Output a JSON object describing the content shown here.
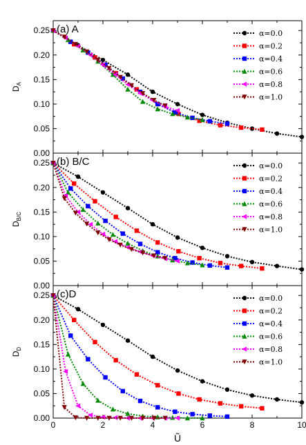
{
  "chart_data": [
    {
      "type": "line",
      "panel_title": "(a) A",
      "ylabel_main": "D",
      "ylabel_sub": "A",
      "xlabel": "Ũ",
      "xlim": [
        0,
        10
      ],
      "ylim": [
        0,
        0.27
      ],
      "xticks": [
        "0",
        "2",
        "4",
        "6",
        "8",
        "10"
      ],
      "yticks": [
        "0.00",
        "0.05",
        "0.10",
        "0.15",
        "0.20",
        "0.25"
      ],
      "legend": "top-right",
      "series": [
        {
          "name": "α=0.0",
          "color": "#000000",
          "marker": "circle",
          "x": [
            0,
            1,
            2,
            3,
            4,
            5,
            6,
            7,
            8,
            9,
            10
          ],
          "y": [
            0.25,
            0.22,
            0.19,
            0.16,
            0.125,
            0.1,
            0.078,
            0.062,
            0.05,
            0.04,
            0.033
          ]
        },
        {
          "name": "α=0.2",
          "color": "#ff0000",
          "marker": "square",
          "x": [
            0,
            0.84,
            1.68,
            2.52,
            3.36,
            4.2,
            5.04,
            5.88,
            6.72,
            7.56,
            8.4
          ],
          "y": [
            0.25,
            0.222,
            0.195,
            0.163,
            0.13,
            0.1,
            0.08,
            0.066,
            0.057,
            0.052,
            0.048
          ]
        },
        {
          "name": "α=0.4",
          "color": "#0000ff",
          "marker": "square",
          "x": [
            0,
            0.7,
            1.4,
            2.1,
            2.8,
            3.5,
            4.2,
            4.9,
            5.6,
            6.3,
            7.0
          ],
          "y": [
            0.25,
            0.227,
            0.205,
            0.18,
            0.152,
            0.125,
            0.1,
            0.083,
            0.072,
            0.065,
            0.06
          ]
        },
        {
          "name": "α=0.6",
          "color": "#008800",
          "marker": "triangle-up",
          "x": [
            0,
            0.6,
            1.2,
            1.8,
            2.4,
            3.0,
            3.6,
            4.2,
            4.8,
            5.4,
            6.0
          ],
          "y": [
            0.25,
            0.231,
            0.21,
            0.187,
            0.16,
            0.13,
            0.105,
            0.09,
            0.08,
            0.073,
            0.068
          ]
        },
        {
          "name": "α=0.8",
          "color": "#ff00ff",
          "marker": "triangle-left",
          "x": [
            0,
            0.5,
            1.0,
            1.5,
            2.0,
            2.5,
            3.0,
            3.5,
            4.0,
            4.5,
            5.0
          ],
          "y": [
            0.25,
            0.235,
            0.218,
            0.2,
            0.18,
            0.16,
            0.14,
            0.122,
            0.108,
            0.095,
            0.087
          ]
        },
        {
          "name": "α=1.0",
          "color": "#800000",
          "marker": "triangle-down",
          "x": [
            0,
            0.45,
            0.9,
            1.35,
            1.8,
            2.25,
            2.7,
            3.15,
            3.6,
            4.05,
            4.5
          ],
          "y": [
            0.25,
            0.237,
            0.222,
            0.207,
            0.19,
            0.173,
            0.155,
            0.138,
            0.122,
            0.108,
            0.097
          ]
        }
      ]
    },
    {
      "type": "line",
      "panel_title": "(b) B/C",
      "ylabel_main": "D",
      "ylabel_sub": "B/C",
      "xlabel": "Ũ",
      "xlim": [
        0,
        10
      ],
      "ylim": [
        0,
        0.27
      ],
      "xticks": [
        "0",
        "2",
        "4",
        "6",
        "8",
        "10"
      ],
      "yticks": [
        "0.00",
        "0.05",
        "0.10",
        "0.15",
        "0.20",
        "0.25"
      ],
      "legend": "top-right",
      "series": [
        {
          "name": "α=0.0",
          "color": "#000000",
          "marker": "circle",
          "x": [
            0,
            1,
            2,
            3,
            4,
            5,
            6,
            7,
            8,
            9,
            10
          ],
          "y": [
            0.25,
            0.222,
            0.19,
            0.158,
            0.125,
            0.098,
            0.077,
            0.06,
            0.048,
            0.04,
            0.033
          ]
        },
        {
          "name": "α=0.2",
          "color": "#ff0000",
          "marker": "square",
          "x": [
            0,
            0.84,
            1.68,
            2.52,
            3.36,
            4.2,
            5.04,
            5.88,
            6.72,
            7.56,
            8.4
          ],
          "y": [
            0.25,
            0.208,
            0.172,
            0.14,
            0.112,
            0.088,
            0.07,
            0.056,
            0.046,
            0.04,
            0.035
          ]
        },
        {
          "name": "α=0.4",
          "color": "#0000ff",
          "marker": "square",
          "x": [
            0,
            0.7,
            1.4,
            2.1,
            2.8,
            3.5,
            4.2,
            4.9,
            5.6,
            6.3,
            7.0
          ],
          "y": [
            0.25,
            0.198,
            0.162,
            0.132,
            0.106,
            0.085,
            0.068,
            0.056,
            0.047,
            0.041,
            0.037
          ]
        },
        {
          "name": "α=0.6",
          "color": "#008800",
          "marker": "triangle-up",
          "x": [
            0,
            0.6,
            1.2,
            1.8,
            2.4,
            3.0,
            3.6,
            4.2,
            4.8,
            5.4,
            6.0
          ],
          "y": [
            0.25,
            0.19,
            0.155,
            0.127,
            0.104,
            0.086,
            0.071,
            0.06,
            0.052,
            0.046,
            0.042
          ]
        },
        {
          "name": "α=0.8",
          "color": "#ff00ff",
          "marker": "triangle-left",
          "x": [
            0,
            0.5,
            1.0,
            1.5,
            2.0,
            2.5,
            3.0,
            3.5,
            4.0,
            4.5,
            5.0
          ],
          "y": [
            0.25,
            0.183,
            0.15,
            0.125,
            0.105,
            0.09,
            0.078,
            0.069,
            0.061,
            0.055,
            0.05
          ]
        },
        {
          "name": "α=1.0",
          "color": "#800000",
          "marker": "triangle-down",
          "x": [
            0,
            0.45,
            0.9,
            1.35,
            1.8,
            2.25,
            2.7,
            3.15,
            3.6,
            4.05,
            4.5
          ],
          "y": [
            0.25,
            0.178,
            0.148,
            0.126,
            0.108,
            0.094,
            0.083,
            0.074,
            0.067,
            0.061,
            0.056
          ]
        }
      ]
    },
    {
      "type": "line",
      "panel_title": "(c)D",
      "ylabel_main": "D",
      "ylabel_sub": "D",
      "xlabel": "Ũ",
      "xlim": [
        0,
        10
      ],
      "ylim": [
        0,
        0.27
      ],
      "xticks": [
        "0",
        "2",
        "4",
        "6",
        "8",
        "10"
      ],
      "yticks": [
        "0.00",
        "0.05",
        "0.10",
        "0.15",
        "0.20",
        "0.25"
      ],
      "legend": "top-right",
      "series": [
        {
          "name": "α=0.0",
          "color": "#000000",
          "marker": "circle",
          "x": [
            0,
            1,
            2,
            3,
            4,
            5,
            6,
            7,
            8,
            9,
            10
          ],
          "y": [
            0.25,
            0.222,
            0.19,
            0.158,
            0.125,
            0.097,
            0.075,
            0.058,
            0.046,
            0.038,
            0.032
          ]
        },
        {
          "name": "α=0.2",
          "color": "#ff0000",
          "marker": "square",
          "x": [
            0,
            0.84,
            1.68,
            2.52,
            3.36,
            4.2,
            5.04,
            5.88,
            6.72,
            7.56,
            8.4
          ],
          "y": [
            0.25,
            0.2,
            0.155,
            0.118,
            0.089,
            0.067,
            0.05,
            0.038,
            0.03,
            0.024,
            0.02
          ]
        },
        {
          "name": "α=0.4",
          "color": "#0000ff",
          "marker": "square",
          "x": [
            0,
            0.7,
            1.4,
            2.1,
            2.8,
            3.5,
            4.2,
            4.9,
            5.6,
            6.3,
            7.0
          ],
          "y": [
            0.25,
            0.168,
            0.12,
            0.083,
            0.055,
            0.035,
            0.022,
            0.013,
            0.008,
            0.005,
            0.003
          ]
        },
        {
          "name": "α=0.6",
          "color": "#008800",
          "marker": "triangle-up",
          "x": [
            0,
            0.6,
            1.2,
            1.8,
            2.4,
            3.0,
            3.6,
            4.2,
            4.8,
            5.4,
            6.0
          ],
          "y": [
            0.25,
            0.13,
            0.07,
            0.036,
            0.018,
            0.009,
            0.004,
            0.002,
            0.001,
            0.0,
            0.0
          ]
        },
        {
          "name": "α=0.8",
          "color": "#ff00ff",
          "marker": "triangle-left",
          "x": [
            0,
            0.5,
            1.0,
            1.5,
            2.0,
            2.5,
            3.0,
            3.5,
            4.0,
            4.5,
            5.0
          ],
          "y": [
            0.25,
            0.095,
            0.025,
            0.006,
            0.002,
            0.001,
            0.0,
            0.0,
            0.0,
            0.0,
            0.0
          ]
        },
        {
          "name": "α=1.0",
          "color": "#800000",
          "marker": "triangle-down",
          "x": [
            0,
            0.45,
            0.9,
            1.35,
            1.8,
            2.25,
            2.7,
            3.15,
            3.6,
            4.05,
            4.5
          ],
          "y": [
            0.25,
            0.022,
            0.001,
            0.0,
            0.0,
            0.0,
            0.0,
            0.0,
            0.0,
            0.0,
            0.0
          ]
        }
      ]
    }
  ]
}
